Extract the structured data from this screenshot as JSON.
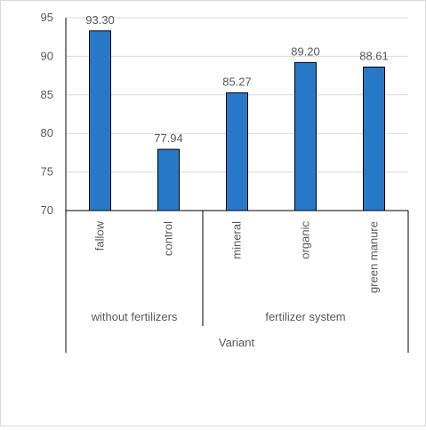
{
  "chart_data": {
    "type": "bar",
    "categories": [
      "fallow",
      "control",
      "mineral",
      "organic",
      "green manure"
    ],
    "values": [
      93.3,
      77.94,
      85.27,
      89.2,
      88.61
    ],
    "data_labels": [
      "93.30",
      "77.94",
      "85.27",
      "89.20",
      "88.61"
    ],
    "groups": [
      {
        "label": "without fertilizers",
        "categories": [
          "fallow",
          "control"
        ]
      },
      {
        "label": "fertilizer system",
        "categories": [
          "mineral",
          "organic",
          "green manure"
        ]
      }
    ],
    "xlabel": "Variant",
    "ylabel": "",
    "ylim": [
      70,
      95
    ],
    "yticks": [
      "70",
      "75",
      "80",
      "85",
      "90",
      "95"
    ],
    "grid": true,
    "legend": "none",
    "bar_color": "#2878c8",
    "bar_outline_color": "#000000"
  }
}
